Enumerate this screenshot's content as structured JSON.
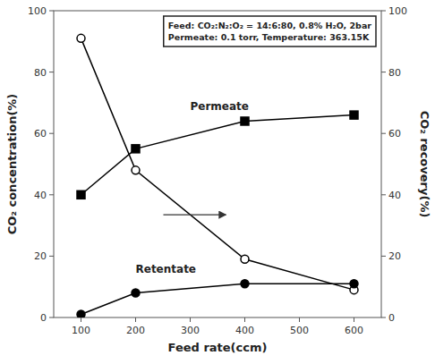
{
  "chart_data": {
    "type": "line",
    "xlabel": "Feed rate(ccm)",
    "ylabel": "CO₂ concentration(%)",
    "y2label": "CO₂ recovery(%)",
    "x": [
      100,
      200,
      400,
      600
    ],
    "series": [
      {
        "color": "#000000",
        "marker": "open-circle",
        "line_style": "solid",
        "values": [
          91,
          48,
          19,
          9
        ]
      },
      {
        "color": "#000000",
        "marker": "circle",
        "line_style": "solid",
        "values": [
          1,
          8,
          11,
          11
        ]
      },
      {
        "color": "#000000",
        "marker": "square",
        "line_style": "solid",
        "values": [
          40,
          55,
          64,
          66
        ],
        "axis": "y2"
      }
    ],
    "xlim": [
      50,
      650
    ],
    "xticks": [
      100,
      200,
      300,
      400,
      500,
      600
    ],
    "ylim": [
      0,
      100
    ],
    "yticks": [
      0,
      20,
      40,
      60,
      80,
      100
    ],
    "y2lim": [
      0,
      100
    ],
    "y2ticks": [
      0,
      20,
      40,
      60,
      80,
      100
    ],
    "grid": false,
    "annotations": [
      "Permeate",
      "Retentate"
    ],
    "text_box": [
      "Feed: CO₂:N₂:O₂ = 14:6:80, 0.8% H₂O, 2bar",
      "Permeate: 0.1 torr, Temperature: 363.15K"
    ],
    "background_color": "#ffffff"
  }
}
